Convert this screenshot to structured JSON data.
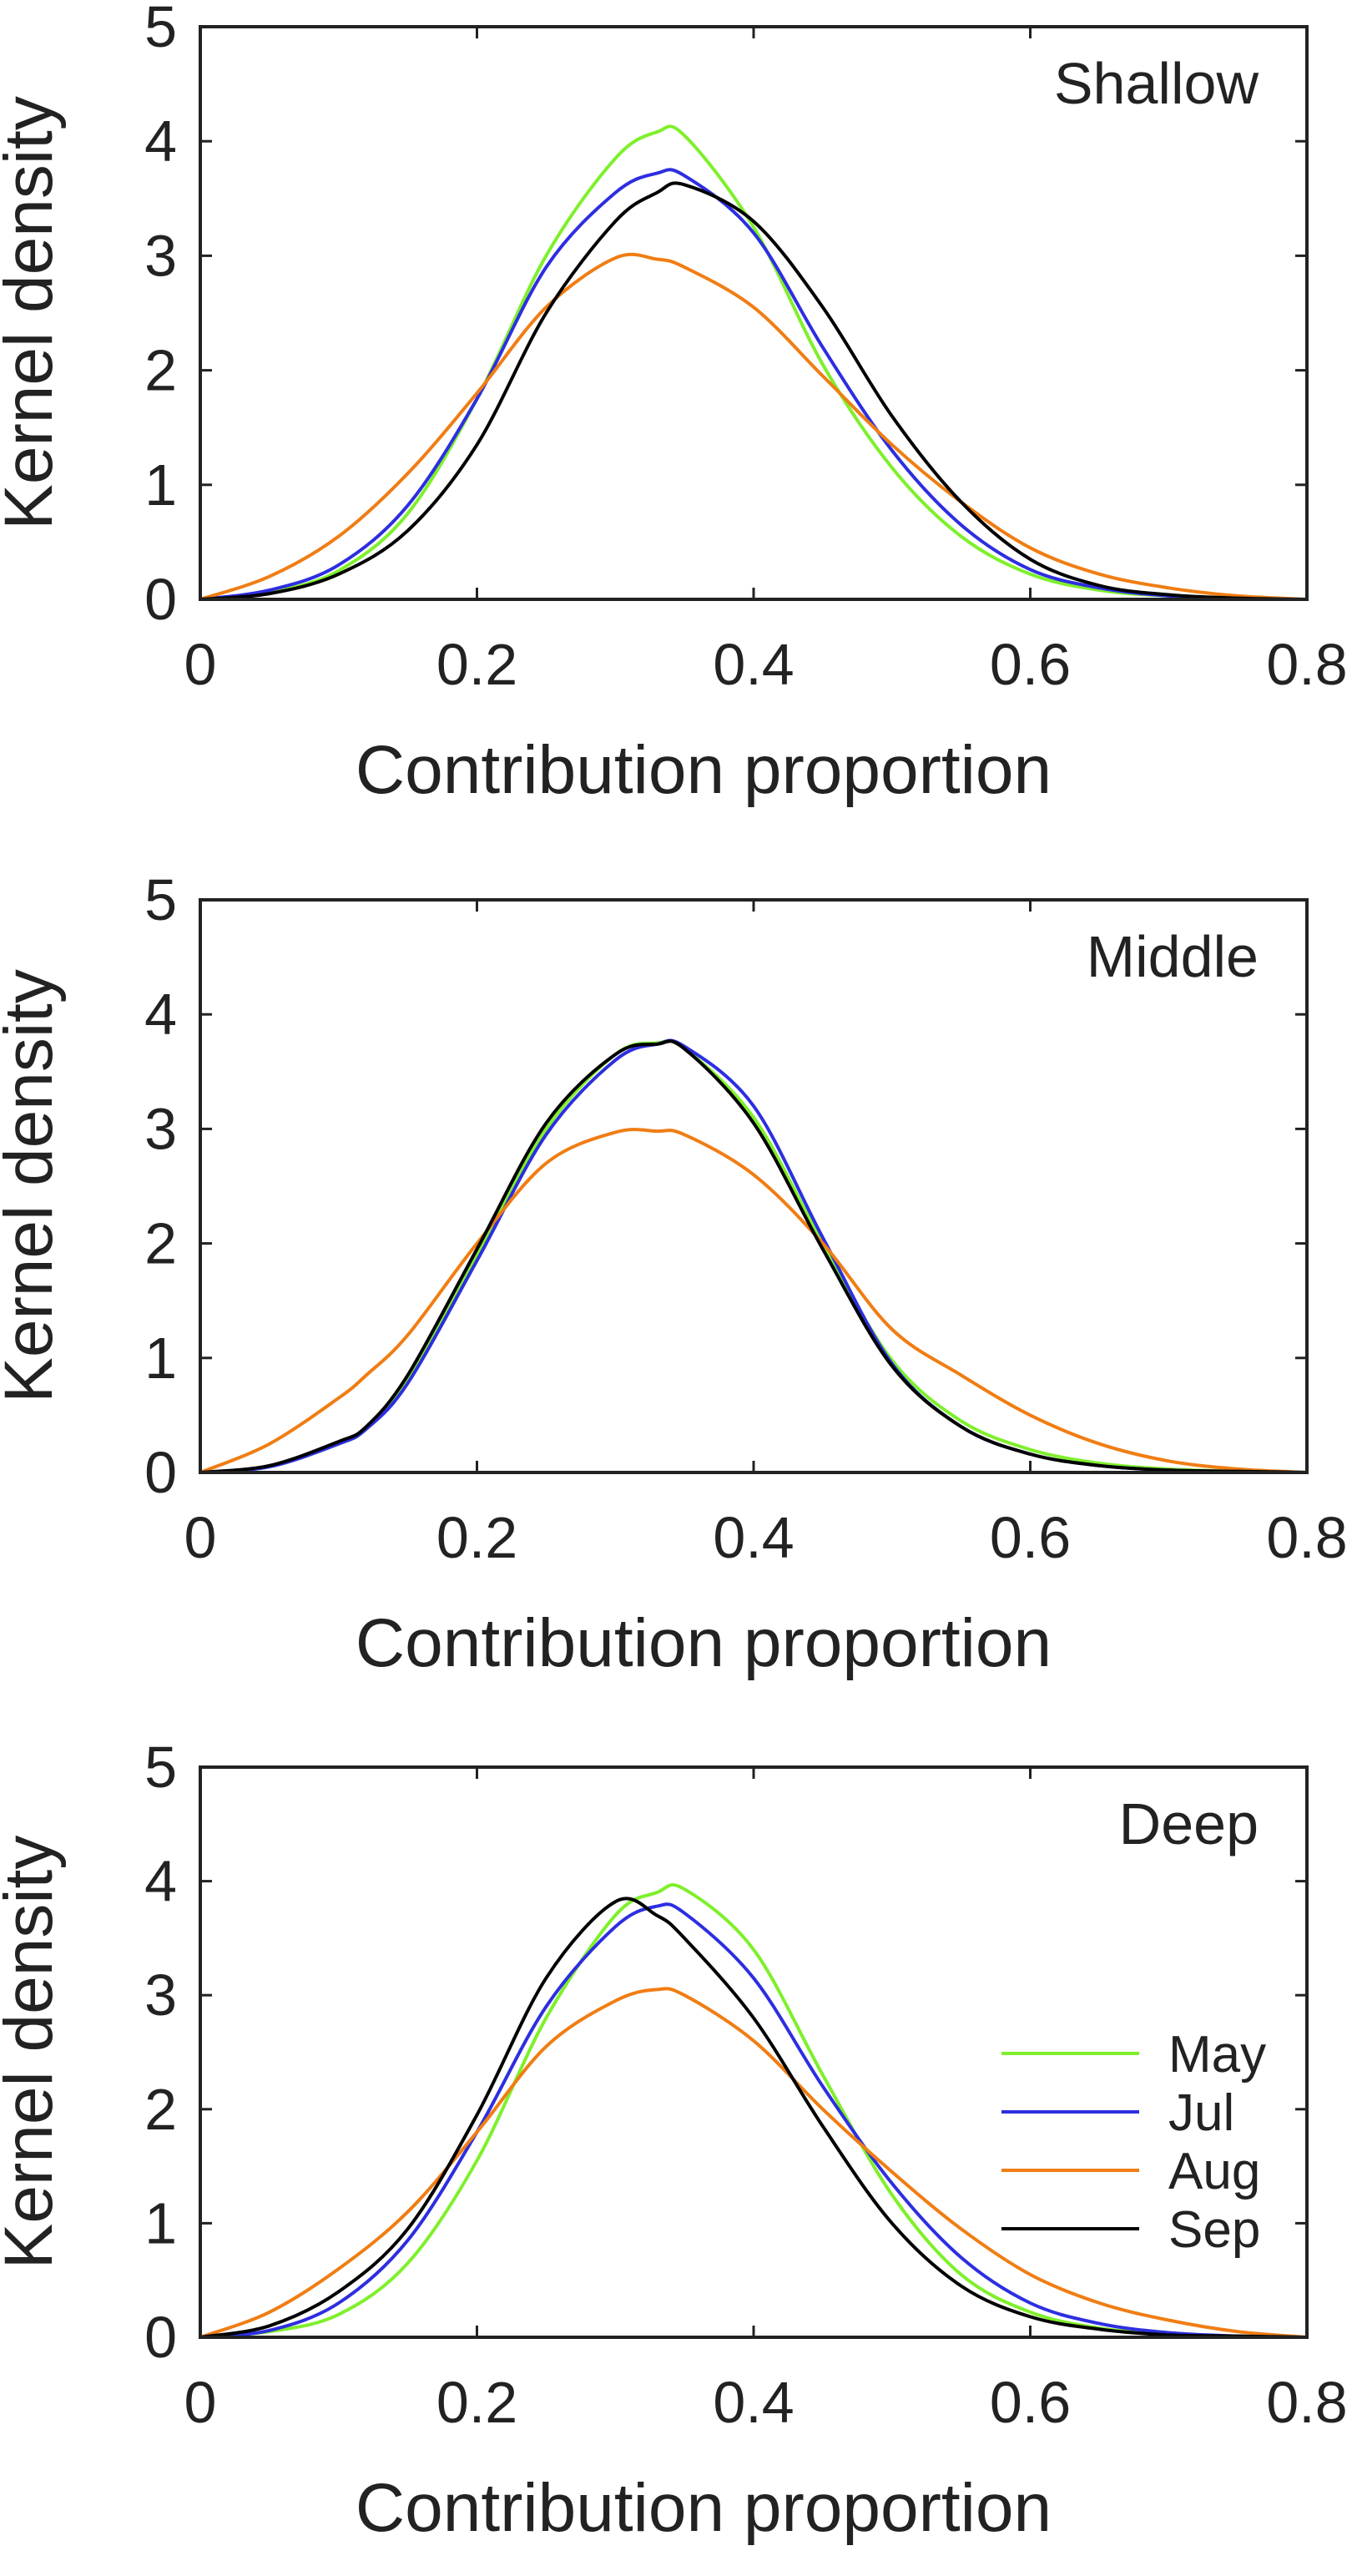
{
  "colors": {
    "May": "#7ef02b",
    "Jul": "#2d2ee0",
    "Aug": "#f07d13",
    "Sep": "#000000",
    "axis": "#222222"
  },
  "legend": {
    "placement": "lower-right of bottom panel",
    "entries": [
      "May",
      "Jul",
      "Aug",
      "Sep"
    ]
  },
  "chart_data": [
    {
      "type": "line",
      "panel_label": "Shallow",
      "xlabel": "Contribution proportion",
      "ylabel": "Kernel density",
      "xlim": [
        0,
        0.8
      ],
      "ylim": [
        0,
        5
      ],
      "xticks": [
        "0",
        "0.2",
        "0.4",
        "0.6",
        "0.8"
      ],
      "yticks": [
        "0",
        "1",
        "2",
        "3",
        "4",
        "5"
      ],
      "grid": false,
      "x": [
        0,
        0.05,
        0.1,
        0.15,
        0.2,
        0.25,
        0.3,
        0.33,
        0.35,
        0.4,
        0.45,
        0.5,
        0.55,
        0.6,
        0.65,
        0.7,
        0.75,
        0.8
      ],
      "series": [
        {
          "name": "May",
          "values": [
            0,
            0.06,
            0.25,
            0.75,
            1.75,
            3.0,
            3.85,
            4.08,
            4.05,
            3.25,
            2.05,
            1.15,
            0.55,
            0.22,
            0.08,
            0.03,
            0.01,
            0
          ]
        },
        {
          "name": "Jul",
          "values": [
            0,
            0.08,
            0.3,
            0.82,
            1.75,
            2.9,
            3.55,
            3.72,
            3.7,
            3.2,
            2.2,
            1.3,
            0.65,
            0.26,
            0.1,
            0.03,
            0.01,
            0
          ]
        },
        {
          "name": "Aug",
          "values": [
            0,
            0.2,
            0.55,
            1.1,
            1.8,
            2.55,
            2.98,
            2.97,
            2.9,
            2.55,
            1.95,
            1.35,
            0.85,
            0.45,
            0.22,
            0.1,
            0.03,
            0
          ]
        },
        {
          "name": "Sep",
          "values": [
            0,
            0.05,
            0.22,
            0.6,
            1.35,
            2.5,
            3.3,
            3.55,
            3.62,
            3.3,
            2.55,
            1.6,
            0.85,
            0.35,
            0.12,
            0.04,
            0.01,
            0
          ]
        }
      ]
    },
    {
      "type": "line",
      "panel_label": "Middle",
      "xlabel": "Contribution proportion",
      "ylabel": "Kernel density",
      "xlim": [
        0,
        0.8
      ],
      "ylim": [
        0,
        5
      ],
      "xticks": [
        "0",
        "0.2",
        "0.4",
        "0.6",
        "0.8"
      ],
      "yticks": [
        "0",
        "1",
        "2",
        "3",
        "4",
        "5"
      ],
      "grid": false,
      "x": [
        0,
        0.05,
        0.1,
        0.12,
        0.15,
        0.2,
        0.25,
        0.3,
        0.33,
        0.35,
        0.4,
        0.45,
        0.5,
        0.55,
        0.6,
        0.65,
        0.7,
        0.75,
        0.8
      ],
      "series": [
        {
          "name": "May",
          "values": [
            0,
            0.05,
            0.25,
            0.38,
            0.8,
            1.9,
            3.0,
            3.65,
            3.75,
            3.7,
            3.1,
            2.0,
            0.98,
            0.45,
            0.2,
            0.08,
            0.03,
            0.01,
            0
          ]
        },
        {
          "name": "Jul",
          "values": [
            0,
            0.05,
            0.25,
            0.38,
            0.78,
            1.85,
            2.95,
            3.6,
            3.74,
            3.72,
            3.2,
            2.05,
            0.95,
            0.4,
            0.16,
            0.06,
            0.02,
            0.01,
            0
          ]
        },
        {
          "name": "Aug",
          "values": [
            0,
            0.25,
            0.65,
            0.85,
            1.2,
            2.0,
            2.7,
            2.97,
            2.98,
            2.95,
            2.6,
            2.0,
            1.25,
            0.85,
            0.5,
            0.25,
            0.1,
            0.03,
            0
          ]
        },
        {
          "name": "Sep",
          "values": [
            0,
            0.06,
            0.27,
            0.4,
            0.85,
            1.95,
            3.05,
            3.65,
            3.74,
            3.7,
            3.05,
            1.95,
            0.93,
            0.4,
            0.16,
            0.06,
            0.02,
            0.01,
            0
          ]
        }
      ]
    },
    {
      "type": "line",
      "panel_label": "Deep",
      "xlabel": "Contribution proportion",
      "ylabel": "Kernel density",
      "xlim": [
        0,
        0.8
      ],
      "ylim": [
        0,
        5
      ],
      "xticks": [
        "0",
        "0.2",
        "0.4",
        "0.6",
        "0.8"
      ],
      "yticks": [
        "0",
        "1",
        "2",
        "3",
        "4",
        "5"
      ],
      "grid": false,
      "x": [
        0,
        0.05,
        0.1,
        0.15,
        0.2,
        0.25,
        0.3,
        0.33,
        0.35,
        0.4,
        0.45,
        0.5,
        0.55,
        0.6,
        0.65,
        0.7,
        0.75,
        0.8
      ],
      "series": [
        {
          "name": "May",
          "values": [
            0,
            0.05,
            0.2,
            0.65,
            1.55,
            2.8,
            3.7,
            3.9,
            3.93,
            3.4,
            2.3,
            1.25,
            0.55,
            0.22,
            0.08,
            0.03,
            0.01,
            0
          ]
        },
        {
          "name": "Jul",
          "values": [
            0,
            0.06,
            0.3,
            0.85,
            1.8,
            2.9,
            3.6,
            3.78,
            3.72,
            3.15,
            2.2,
            1.35,
            0.7,
            0.3,
            0.12,
            0.04,
            0.01,
            0
          ]
        },
        {
          "name": "Aug",
          "values": [
            0,
            0.22,
            0.6,
            1.1,
            1.8,
            2.55,
            2.95,
            3.05,
            3.0,
            2.6,
            2.0,
            1.45,
            0.95,
            0.55,
            0.3,
            0.15,
            0.05,
            0
          ]
        },
        {
          "name": "Sep",
          "values": [
            0,
            0.1,
            0.4,
            0.95,
            1.95,
            3.15,
            3.82,
            3.7,
            3.5,
            2.8,
            1.85,
            1.0,
            0.45,
            0.18,
            0.07,
            0.02,
            0.01,
            0
          ]
        }
      ]
    }
  ]
}
